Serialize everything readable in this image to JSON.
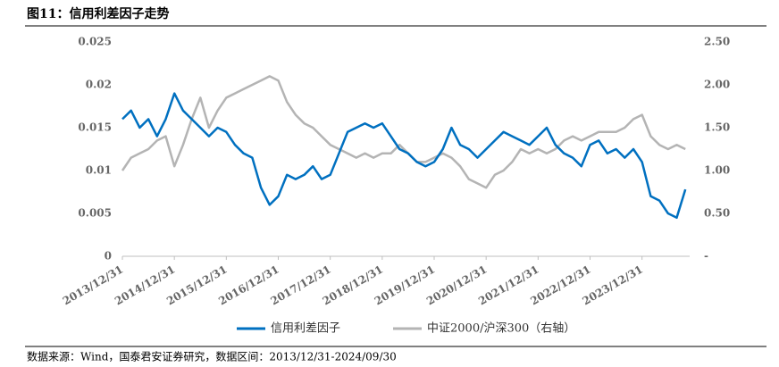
{
  "chart_data": {
    "type": "line",
    "title": "图11：信用利差因子走势",
    "source": "数据来源：Wind，国泰君安证券研究，数据区间：2013/12/31-2024/09/30",
    "categories": [
      "2013/12/31",
      null,
      null,
      null,
      null,
      null,
      "2014/12/31",
      null,
      null,
      null,
      null,
      null,
      "2015/12/31",
      null,
      null,
      null,
      null,
      null,
      "2016/12/31",
      null,
      null,
      null,
      null,
      null,
      "2017/12/31",
      null,
      null,
      null,
      null,
      null,
      "2018/12/31",
      null,
      null,
      null,
      null,
      null,
      "2019/12/31",
      null,
      null,
      null,
      null,
      null,
      "2020/12/31",
      null,
      null,
      null,
      null,
      null,
      "2021/12/31",
      null,
      null,
      null,
      null,
      null,
      "2022/12/31",
      null,
      null,
      null,
      null,
      null,
      "2023/12/31",
      null,
      null,
      null,
      null,
      null
    ],
    "series": [
      {
        "name": "信用利差因子",
        "color": "#0070c0",
        "values": [
          0.016,
          0.017,
          0.015,
          0.016,
          0.014,
          0.016,
          0.019,
          0.017,
          0.016,
          0.015,
          0.014,
          0.015,
          0.0145,
          0.013,
          0.012,
          0.0115,
          0.008,
          0.006,
          0.007,
          0.0095,
          0.009,
          0.0095,
          0.0105,
          0.009,
          0.0095,
          0.012,
          0.0145,
          0.015,
          0.0155,
          0.015,
          0.0155,
          0.014,
          0.0125,
          0.012,
          0.011,
          0.0105,
          0.011,
          0.0125,
          0.015,
          0.013,
          0.0125,
          0.0115,
          0.0125,
          0.0135,
          0.0145,
          0.014,
          0.0135,
          0.013,
          0.014,
          0.015,
          0.013,
          0.012,
          0.0115,
          0.0105,
          0.013,
          0.0135,
          0.012,
          0.0125,
          0.0115,
          0.0125,
          0.011,
          0.007,
          0.0065,
          0.005,
          0.0045,
          0.0078
        ]
      },
      {
        "name": "中证2000/沪深300（右轴）",
        "color": "#b4b4b4",
        "axis": "y2",
        "values": [
          1.0,
          1.15,
          1.2,
          1.25,
          1.35,
          1.4,
          1.05,
          1.3,
          1.6,
          1.85,
          1.5,
          1.7,
          1.85,
          1.9,
          1.95,
          2.0,
          2.05,
          2.1,
          2.05,
          1.8,
          1.65,
          1.55,
          1.5,
          1.4,
          1.3,
          1.25,
          1.2,
          1.15,
          1.2,
          1.15,
          1.2,
          1.2,
          1.3,
          1.2,
          1.1,
          1.1,
          1.15,
          1.2,
          1.15,
          1.05,
          0.9,
          0.85,
          0.8,
          0.95,
          1.0,
          1.1,
          1.25,
          1.2,
          1.25,
          1.2,
          1.25,
          1.35,
          1.4,
          1.35,
          1.4,
          1.45,
          1.45,
          1.45,
          1.5,
          1.6,
          1.65,
          1.4,
          1.3,
          1.25,
          1.3,
          1.25
        ]
      }
    ],
    "ylim": [
      0,
      0.025
    ],
    "yticks": [
      0,
      0.005,
      0.01,
      0.015,
      0.02,
      0.025
    ],
    "y2lim": [
      0,
      2.5
    ],
    "y2ticks": [
      {
        "value": 0,
        "label": "-"
      },
      {
        "value": 0.5,
        "label": "0.50"
      },
      {
        "value": 1,
        "label": "1.00"
      },
      {
        "value": 1.5,
        "label": "1.50"
      },
      {
        "value": 2,
        "label": "2.00"
      },
      {
        "value": 2.5,
        "label": "2.50"
      }
    ],
    "legend": "bottom"
  }
}
